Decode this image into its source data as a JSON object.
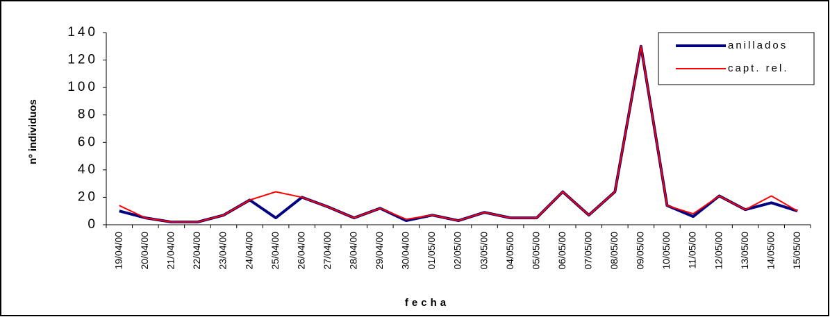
{
  "chart_data": {
    "type": "line",
    "x_label": "fecha",
    "y_label": "nº individuos",
    "categories": [
      "19/04/00",
      "20/04/00",
      "21/04/00",
      "22/04/00",
      "23/04/00",
      "24/04/00",
      "25/04/00",
      "26/04/00",
      "27/04/00",
      "28/04/00",
      "29/04/00",
      "30/04/00",
      "01/05/00",
      "02/05/00",
      "03/05/00",
      "04/05/00",
      "05/05/00",
      "06/05/00",
      "07/05/00",
      "08/05/00",
      "09/05/00",
      "10/05/00",
      "11/05/00",
      "12/05/00",
      "13/05/00",
      "14/05/00",
      "15/05/00"
    ],
    "series": [
      {
        "name": "anillados",
        "color": "#000080",
        "width": 4,
        "values": [
          10,
          5,
          2,
          2,
          7,
          18,
          5,
          20,
          13,
          5,
          12,
          3,
          7,
          3,
          9,
          5,
          5,
          24,
          7,
          24,
          130,
          14,
          6,
          21,
          11,
          16,
          10
        ]
      },
      {
        "name": "capt. rel.",
        "color": "#ff0000",
        "width": 2,
        "values": [
          14,
          5,
          2,
          2,
          7,
          18,
          24,
          20,
          13,
          5,
          12,
          4,
          7,
          3,
          9,
          5,
          5,
          24,
          7,
          24,
          130,
          14,
          8,
          21,
          11,
          21,
          10
        ]
      }
    ],
    "ylim": [
      0,
      140
    ],
    "yticks": [
      0,
      20,
      40,
      60,
      80,
      100,
      120,
      140
    ],
    "grid": false,
    "legend": "top-right"
  }
}
